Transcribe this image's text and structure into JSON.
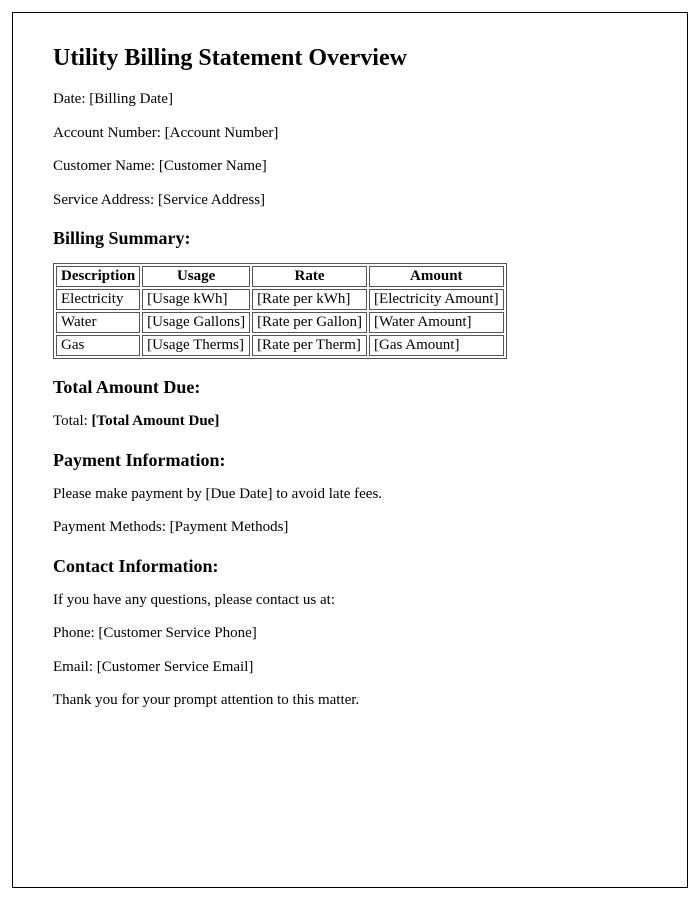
{
  "title": "Utility Billing Statement Overview",
  "meta": {
    "date_label": "Date: ",
    "date_value": "[Billing Date]",
    "account_label": "Account Number: ",
    "account_value": "[Account Number]",
    "customer_label": "Customer Name: ",
    "customer_value": "[Customer Name]",
    "address_label": "Service Address: ",
    "address_value": "[Service Address]"
  },
  "billing_summary": {
    "heading": "Billing Summary:",
    "table": {
      "type": "table",
      "columns": [
        "Description",
        "Usage",
        "Rate",
        "Amount"
      ],
      "rows": [
        [
          "Electricity",
          "[Usage kWh]",
          "[Rate per kWh]",
          "[Electricity Amount]"
        ],
        [
          "Water",
          "[Usage Gallons]",
          "[Rate per Gallon]",
          "[Water Amount]"
        ],
        [
          "Gas",
          "[Usage Therms]",
          "[Rate per Therm]",
          "[Gas Amount]"
        ]
      ],
      "border_color": "#555555",
      "header_fontweight": "bold",
      "cell_fontsize": 15
    }
  },
  "total": {
    "heading": "Total Amount Due:",
    "label": "Total: ",
    "value": "[Total Amount Due]"
  },
  "payment": {
    "heading": "Payment Information:",
    "line1_prefix": "Please make payment by ",
    "line1_value": "[Due Date]",
    "line1_suffix": " to avoid late fees.",
    "methods_label": "Payment Methods: ",
    "methods_value": "[Payment Methods]"
  },
  "contact": {
    "heading": "Contact Information:",
    "intro": "If you have any questions, please contact us at:",
    "phone_label": "Phone: ",
    "phone_value": "[Customer Service Phone]",
    "email_label": "Email: ",
    "email_value": "[Customer Service Email]",
    "closing": "Thank you for your prompt attention to this matter."
  },
  "styles": {
    "page_border_color": "#000000",
    "background_color": "#ffffff",
    "text_color": "#000000",
    "title_fontsize": 24,
    "heading_fontsize": 18,
    "body_fontsize": 15,
    "font_family": "Times New Roman"
  }
}
